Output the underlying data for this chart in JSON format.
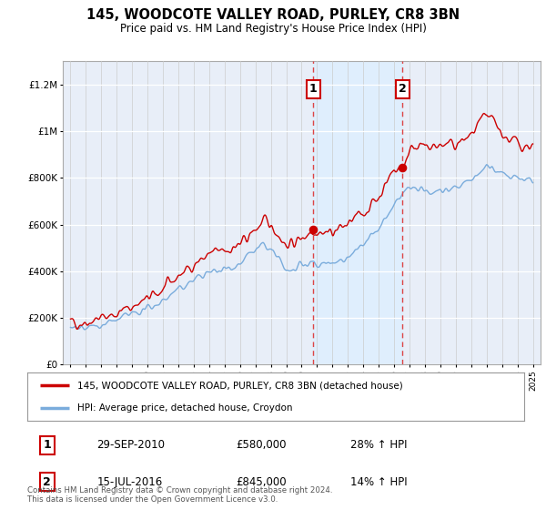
{
  "title": "145, WOODCOTE VALLEY ROAD, PURLEY, CR8 3BN",
  "subtitle": "Price paid vs. HM Land Registry's House Price Index (HPI)",
  "legend_line1": "145, WOODCOTE VALLEY ROAD, PURLEY, CR8 3BN (detached house)",
  "legend_line2": "HPI: Average price, detached house, Croydon",
  "sale1_date": "29-SEP-2010",
  "sale1_price": "£580,000",
  "sale1_hpi": "28% ↑ HPI",
  "sale1_year": 2010.75,
  "sale1_value": 580000,
  "sale2_date": "15-JUL-2016",
  "sale2_price": "£845,000",
  "sale2_hpi": "14% ↑ HPI",
  "sale2_year": 2016.54,
  "sale2_value": 845000,
  "red_color": "#cc0000",
  "blue_color": "#7aacdc",
  "shade_color": "#ddeeff",
  "dashed_color": "#dd4444",
  "ylim_max": 1300000,
  "xlim_start": 1994.5,
  "xlim_end": 2025.5,
  "footer": "Contains HM Land Registry data © Crown copyright and database right 2024.\nThis data is licensed under the Open Government Licence v3.0.",
  "background_plot": "#e8eef8",
  "background_fig": "#ffffff"
}
